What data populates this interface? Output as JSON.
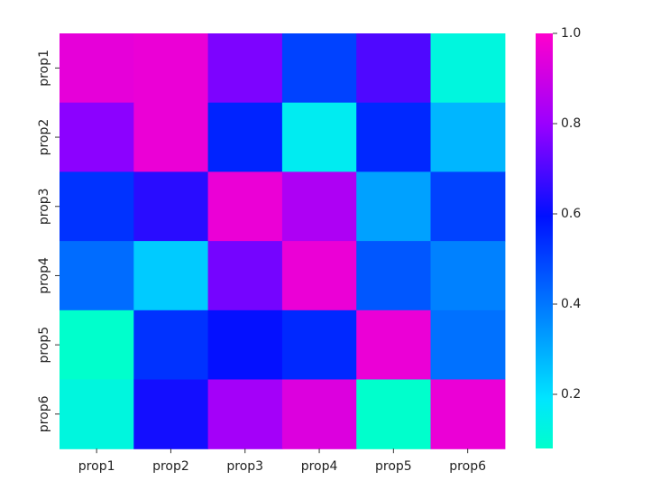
{
  "chart_data": {
    "type": "heatmap",
    "title": "",
    "xlabel": "",
    "ylabel": "",
    "x_categories": [
      "prop1",
      "prop2",
      "prop3",
      "prop4",
      "prop5",
      "prop6"
    ],
    "y_categories": [
      "prop1",
      "prop2",
      "prop3",
      "prop4",
      "prop5",
      "prop6"
    ],
    "values": [
      [
        0.95,
        0.96,
        0.76,
        0.5,
        0.7,
        0.12
      ],
      [
        0.78,
        0.96,
        0.56,
        0.16,
        0.55,
        0.28
      ],
      [
        0.53,
        0.65,
        0.96,
        0.84,
        0.32,
        0.5
      ],
      [
        0.42,
        0.24,
        0.75,
        0.96,
        0.46,
        0.38
      ],
      [
        0.08,
        0.53,
        0.6,
        0.55,
        0.96,
        0.41
      ],
      [
        0.12,
        0.62,
        0.82,
        0.93,
        0.08,
        0.96
      ]
    ],
    "colorbar": {
      "range": [
        0.08,
        1.0
      ],
      "ticks": [
        1.0,
        0.8,
        0.6,
        0.4,
        0.2
      ],
      "tick_labels": [
        "1.0",
        "0.8",
        "0.6",
        "0.4",
        "0.2"
      ]
    },
    "colormap": [
      "#00ffcc",
      "#00e5ff",
      "#0010ff",
      "#9900ff",
      "#ff00cc"
    ],
    "grid": false,
    "legend": "colorbar-right"
  }
}
